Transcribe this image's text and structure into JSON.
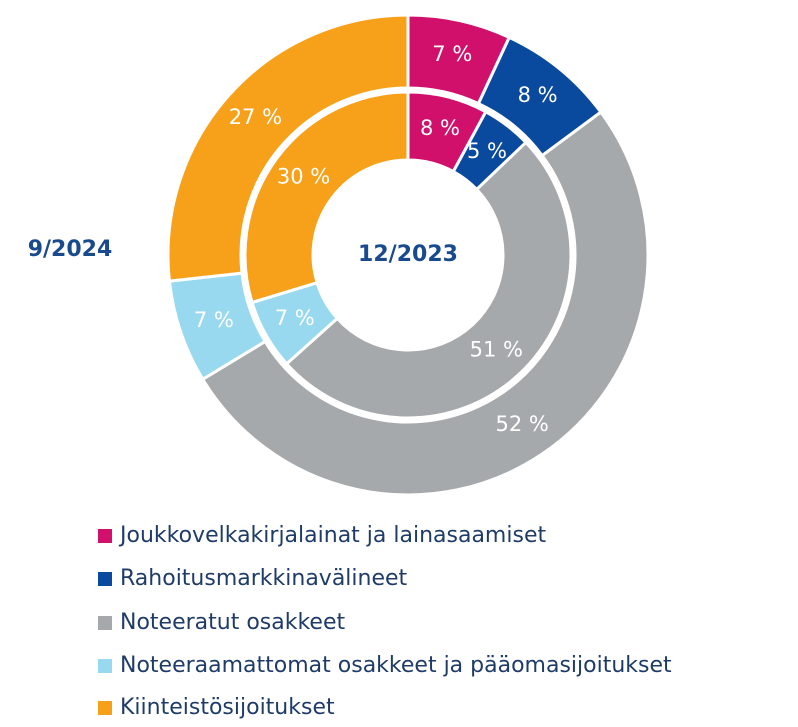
{
  "chart_data": {
    "type": "donut",
    "categories": [
      "Joukkovelkakirjalainat ja lainasaamiset",
      "Rahoitusmarkkinavälineet",
      "Noteeratut osakkeet",
      "Noteeraamattomat osakkeet  ja pääomasijoitukset",
      "Kiinteistösijoitukset"
    ],
    "colors": [
      "#d0106a",
      "#0a4a9e",
      "#a6a9ab",
      "#99d9f0",
      "#f7a11a"
    ],
    "series": [
      {
        "name": "9/2024",
        "values": [
          7,
          8,
          52,
          7,
          27
        ],
        "value_labels": [
          "7 %",
          "8 %",
          "52 %",
          "7 %",
          "27 %"
        ]
      },
      {
        "name": "12/2023",
        "values": [
          8,
          5,
          51,
          7,
          30
        ],
        "value_labels": [
          "8 %",
          "5 %",
          "51 %",
          "7 %",
          "30 %"
        ]
      }
    ]
  }
}
